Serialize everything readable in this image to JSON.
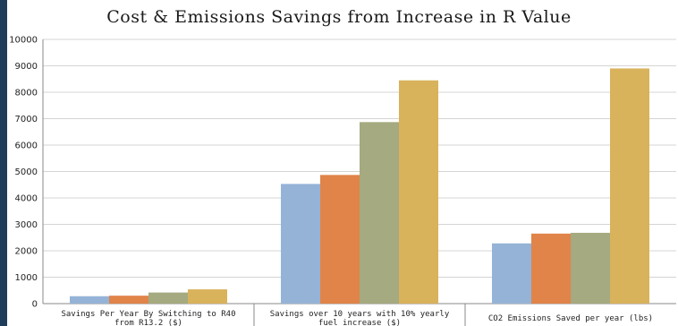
{
  "chart_data": {
    "type": "bar",
    "title": "Cost & Emissions Savings from Increase in R Value",
    "categories": [
      [
        "Savings Per Year By Switching to R40",
        "from R13.2 ($)"
      ],
      [
        "Savings over 10 years with 10% yearly",
        "fuel increase ($)"
      ],
      [
        "CO2 Emissions Saved per year (lbs)"
      ]
    ],
    "series": [
      {
        "values": [
          280,
          4530,
          2280
        ],
        "color": "#95b3d7"
      },
      {
        "values": [
          300,
          4870,
          2650
        ],
        "color": "#e0844a"
      },
      {
        "values": [
          420,
          6870,
          2680
        ],
        "color": "#a5aa80"
      },
      {
        "values": [
          540,
          8450,
          8900
        ],
        "color": "#d9b25c"
      }
    ],
    "ylim": [
      0,
      10000
    ],
    "yticks": [
      0,
      1000,
      2000,
      3000,
      4000,
      5000,
      6000,
      7000,
      8000,
      9000,
      10000
    ],
    "grid": true,
    "legend": "none"
  }
}
